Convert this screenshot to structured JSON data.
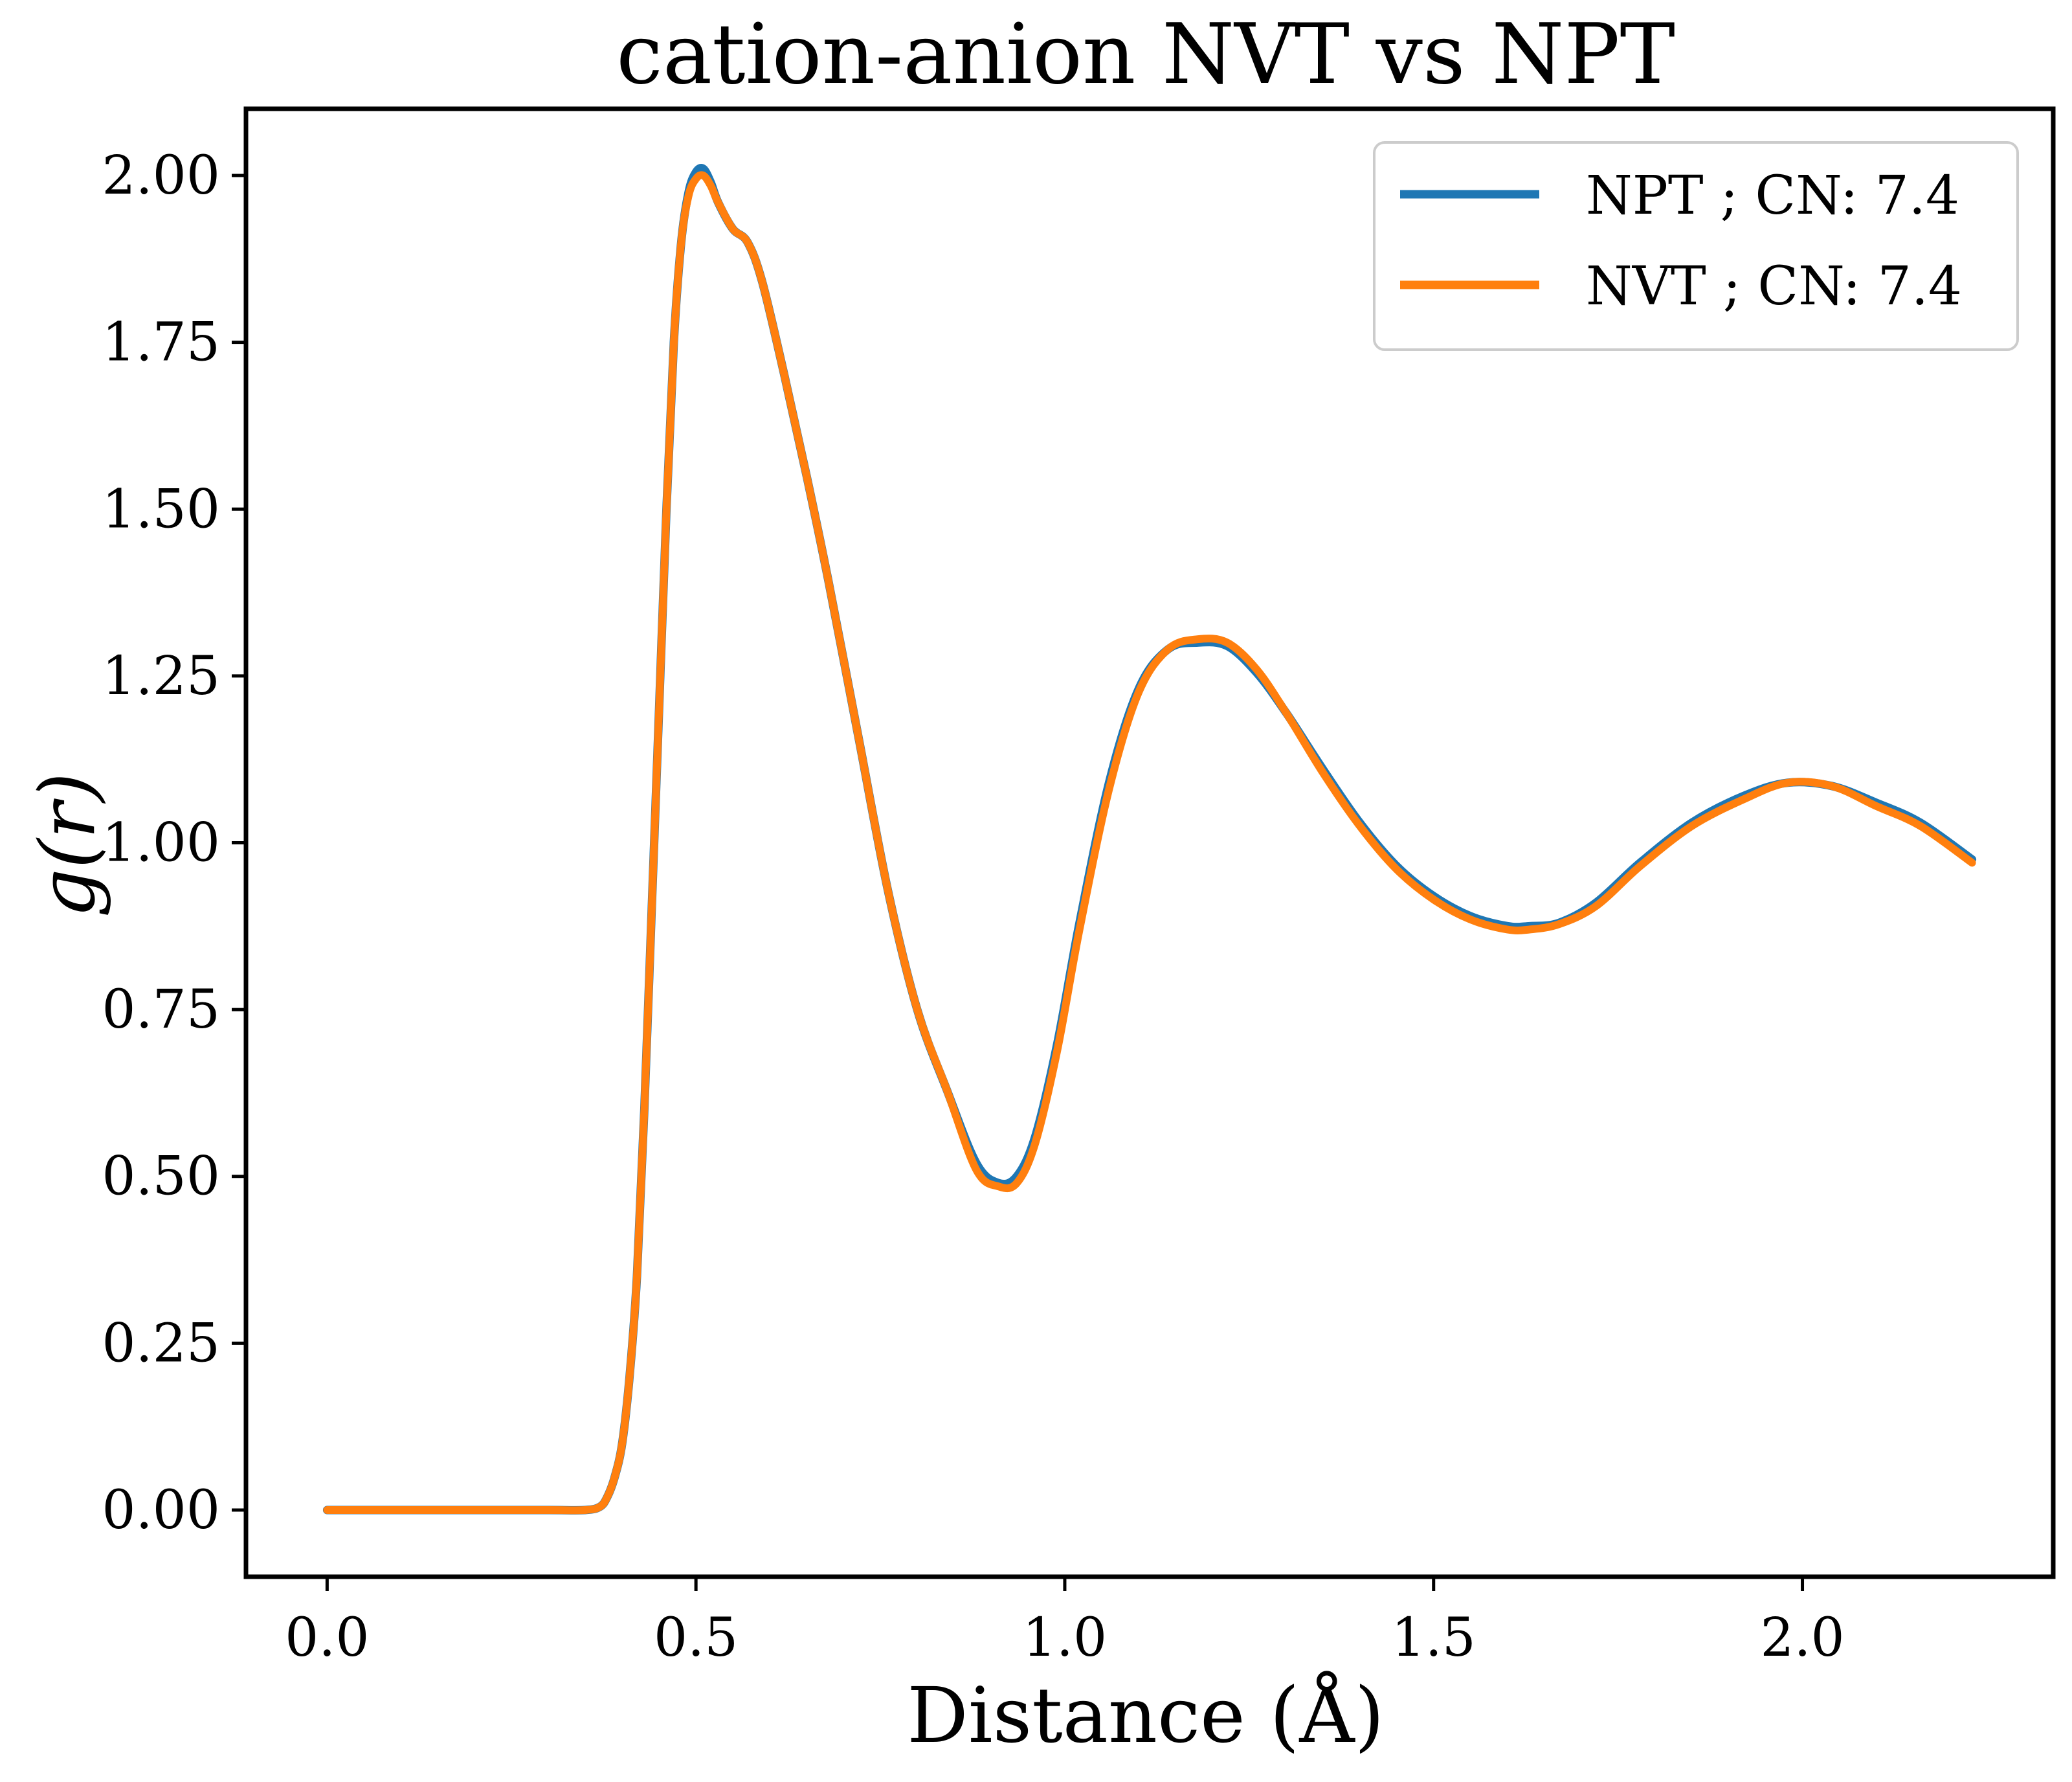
{
  "chart_data": {
    "type": "line",
    "title": "cation-anion NVT vs NPT",
    "xlabel": "Distance (Å)",
    "ylabel": "g(r)",
    "xlim": [
      -0.11,
      2.34
    ],
    "ylim": [
      -0.1,
      2.1
    ],
    "xticks": [
      0.0,
      0.5,
      1.0,
      1.5,
      2.0
    ],
    "xtick_labels": [
      "0.0",
      "0.5",
      "1.0",
      "1.5",
      "2.0"
    ],
    "yticks": [
      0.0,
      0.25,
      0.5,
      0.75,
      1.0,
      1.25,
      1.5,
      1.75,
      2.0
    ],
    "ytick_labels": [
      "0.00",
      "0.25",
      "0.50",
      "0.75",
      "1.00",
      "1.25",
      "1.50",
      "1.75",
      "2.00"
    ],
    "grid": false,
    "legend_position": "top-right",
    "series": [
      {
        "name": "NPT ; CN: 7.4",
        "color": "#1f77b4",
        "x": [
          0.0,
          0.1,
          0.2,
          0.3,
          0.35,
          0.37,
          0.38,
          0.39,
          0.4,
          0.41,
          0.42,
          0.43,
          0.44,
          0.45,
          0.46,
          0.47,
          0.48,
          0.49,
          0.5,
          0.51,
          0.52,
          0.53,
          0.55,
          0.57,
          0.59,
          0.62,
          0.65,
          0.68,
          0.72,
          0.76,
          0.8,
          0.84,
          0.88,
          0.91,
          0.935,
          0.96,
          0.99,
          1.02,
          1.06,
          1.1,
          1.14,
          1.18,
          1.22,
          1.26,
          1.3,
          1.35,
          1.4,
          1.45,
          1.5,
          1.55,
          1.6,
          1.63,
          1.67,
          1.72,
          1.78,
          1.85,
          1.92,
          1.98,
          2.04,
          2.1,
          2.16,
          2.23
        ],
        "y": [
          0.0,
          0.0,
          0.0,
          0.0,
          0.0,
          0.005,
          0.02,
          0.05,
          0.1,
          0.2,
          0.35,
          0.6,
          0.9,
          1.2,
          1.5,
          1.75,
          1.9,
          1.975,
          2.005,
          2.01,
          1.99,
          1.96,
          1.92,
          1.9,
          1.84,
          1.7,
          1.55,
          1.39,
          1.16,
          0.93,
          0.75,
          0.63,
          0.52,
          0.49,
          0.5,
          0.56,
          0.7,
          0.88,
          1.09,
          1.23,
          1.29,
          1.3,
          1.295,
          1.255,
          1.195,
          1.11,
          1.03,
          0.965,
          0.92,
          0.89,
          0.875,
          0.875,
          0.88,
          0.91,
          0.97,
          1.03,
          1.07,
          1.09,
          1.085,
          1.06,
          1.03,
          0.975
        ]
      },
      {
        "name": "NVT ; CN: 7.4",
        "color": "#ff7f0e",
        "x": [
          0.0,
          0.1,
          0.2,
          0.3,
          0.35,
          0.37,
          0.38,
          0.39,
          0.4,
          0.41,
          0.42,
          0.43,
          0.44,
          0.45,
          0.46,
          0.47,
          0.48,
          0.49,
          0.5,
          0.51,
          0.52,
          0.53,
          0.55,
          0.57,
          0.59,
          0.62,
          0.65,
          0.68,
          0.72,
          0.76,
          0.8,
          0.84,
          0.88,
          0.91,
          0.935,
          0.96,
          0.99,
          1.02,
          1.06,
          1.1,
          1.14,
          1.18,
          1.22,
          1.26,
          1.3,
          1.35,
          1.4,
          1.45,
          1.5,
          1.55,
          1.6,
          1.63,
          1.67,
          1.72,
          1.78,
          1.85,
          1.92,
          1.98,
          2.04,
          2.1,
          2.16,
          2.23
        ],
        "y": [
          0.0,
          0.0,
          0.0,
          0.0,
          0.0,
          0.005,
          0.02,
          0.05,
          0.1,
          0.2,
          0.35,
          0.6,
          0.9,
          1.2,
          1.5,
          1.75,
          1.9,
          1.97,
          1.995,
          2.0,
          1.985,
          1.96,
          1.92,
          1.9,
          1.84,
          1.7,
          1.55,
          1.39,
          1.16,
          0.93,
          0.75,
          0.63,
          0.51,
          0.485,
          0.49,
          0.55,
          0.69,
          0.87,
          1.08,
          1.225,
          1.29,
          1.305,
          1.3,
          1.26,
          1.195,
          1.105,
          1.025,
          0.96,
          0.915,
          0.885,
          0.87,
          0.87,
          0.878,
          0.905,
          0.965,
          1.025,
          1.065,
          1.09,
          1.085,
          1.055,
          1.025,
          0.97
        ]
      }
    ]
  }
}
